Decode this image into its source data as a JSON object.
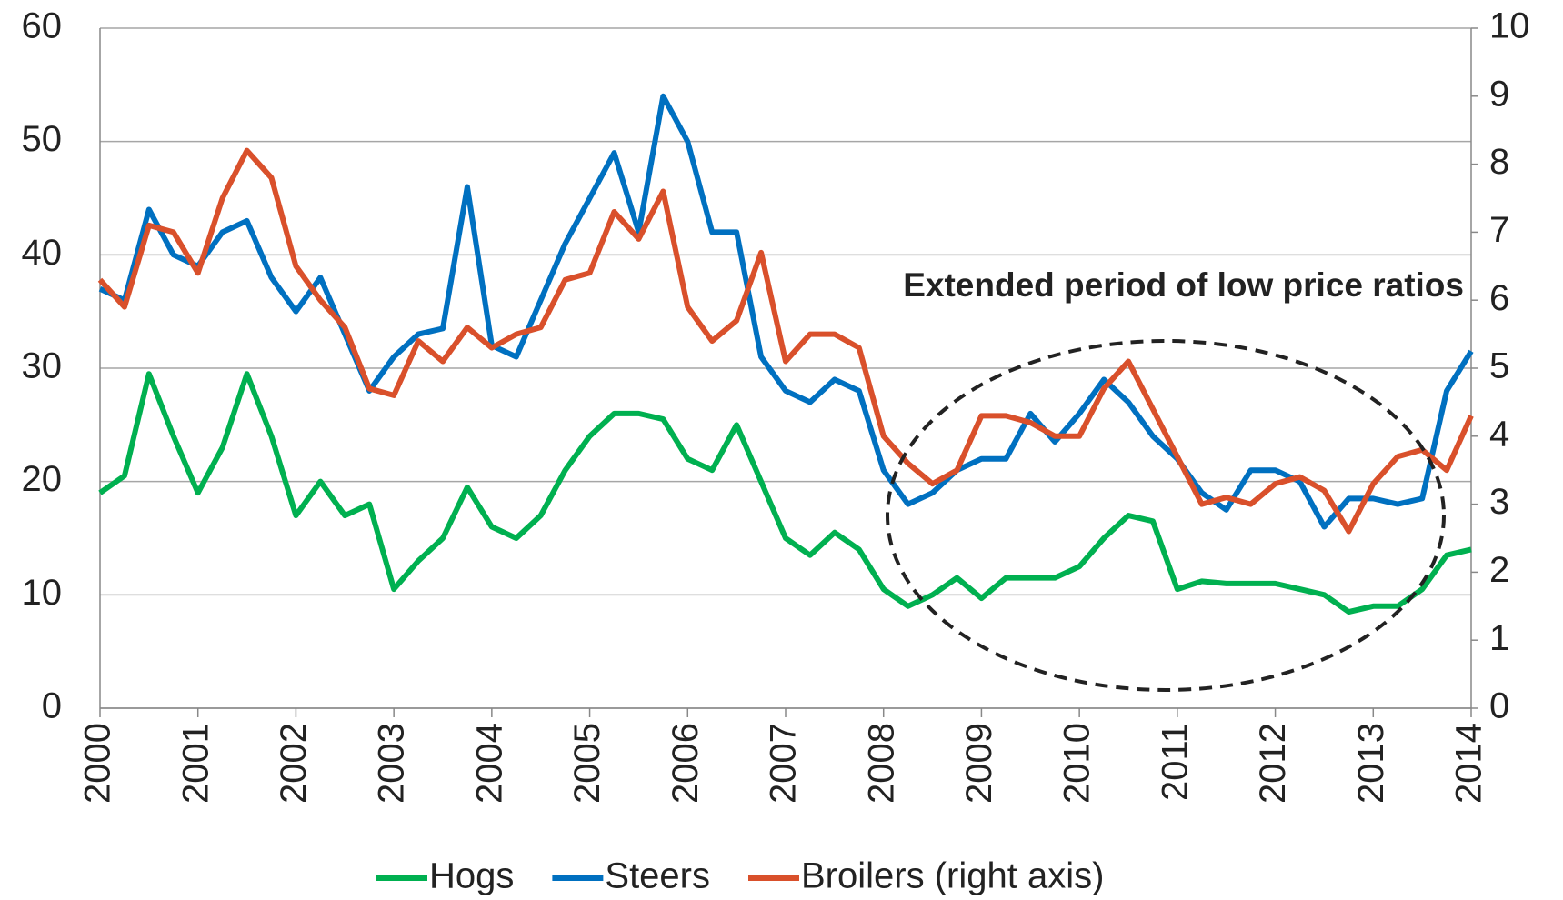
{
  "chart_data": {
    "type": "line",
    "annotation": "Extended period of low price ratios",
    "x": [
      2000,
      2000.25,
      2000.5,
      2000.75,
      2001,
      2001.25,
      2001.5,
      2001.75,
      2002,
      2002.25,
      2002.5,
      2002.75,
      2003,
      2003.25,
      2003.5,
      2003.75,
      2004,
      2004.25,
      2004.5,
      2004.75,
      2005,
      2005.25,
      2005.5,
      2005.75,
      2006,
      2006.25,
      2006.5,
      2006.75,
      2007,
      2007.25,
      2007.5,
      2007.75,
      2008,
      2008.25,
      2008.5,
      2008.75,
      2009,
      2009.25,
      2009.5,
      2009.75,
      2010,
      2010.25,
      2010.5,
      2010.75,
      2011,
      2011.25,
      2011.5,
      2011.75,
      2012,
      2012.25,
      2012.5,
      2012.75,
      2013,
      2013.25,
      2013.5,
      2013.75,
      2014
    ],
    "xlim": [
      2000,
      2014
    ],
    "xticks": [
      2000,
      2001,
      2002,
      2003,
      2004,
      2005,
      2006,
      2007,
      2008,
      2009,
      2010,
      2011,
      2012,
      2013,
      2014
    ],
    "ylim": [
      0,
      60
    ],
    "yticks": [
      0,
      10,
      20,
      30,
      40,
      50,
      60
    ],
    "y2lim": [
      0,
      10
    ],
    "y2ticks": [
      0,
      1,
      2,
      3,
      4,
      5,
      6,
      7,
      8,
      9,
      10
    ],
    "grid": true,
    "legend": "bottom",
    "series": [
      {
        "name": "Hogs",
        "color": "#00b050",
        "values": [
          19,
          20.5,
          29.5,
          24,
          19,
          23,
          29.5,
          24,
          17,
          20,
          17,
          18,
          10.5,
          13,
          15,
          19.5,
          16,
          15,
          17,
          21,
          24,
          26,
          26,
          25.5,
          22,
          21,
          25,
          20,
          15,
          13.5,
          15.5,
          14,
          10.5,
          9,
          10,
          11.5,
          9.7,
          11.5,
          11.5,
          11.5,
          12.5,
          15,
          17,
          16.5,
          10.5,
          11.2,
          11,
          11,
          11,
          10.5,
          10,
          8.5,
          9,
          9,
          10.5,
          13.5,
          14
        ]
      },
      {
        "name": "Steers",
        "color": "#0070c0",
        "values": [
          37,
          36,
          44,
          40,
          39,
          42,
          43,
          38,
          35,
          38,
          33,
          28,
          31,
          33,
          33.5,
          46,
          32,
          31,
          36,
          41,
          45,
          49,
          42,
          54,
          50,
          42,
          42,
          31,
          28,
          27,
          29,
          28,
          21,
          18,
          19,
          21,
          22,
          22,
          26,
          23.5,
          26,
          29,
          27,
          24,
          22,
          19,
          17.5,
          21,
          21,
          20,
          16,
          18.5,
          18.5,
          18,
          18.5,
          28,
          31.5
        ]
      },
      {
        "name": "Broilers (right axis)",
        "color": "#d9502b",
        "axis": "y2",
        "values": [
          6.3,
          5.9,
          7.1,
          7.0,
          6.4,
          7.5,
          8.2,
          7.8,
          6.5,
          6.0,
          5.6,
          4.7,
          4.6,
          5.4,
          5.1,
          5.6,
          5.3,
          5.5,
          5.6,
          6.3,
          6.4,
          7.3,
          6.9,
          7.6,
          5.9,
          5.4,
          5.7,
          6.7,
          5.1,
          5.5,
          5.5,
          5.3,
          4.0,
          3.6,
          3.3,
          3.5,
          4.3,
          4.3,
          4.2,
          4.0,
          4.0,
          4.7,
          5.1,
          4.4,
          3.7,
          3.0,
          3.1,
          3.0,
          3.3,
          3.4,
          3.2,
          2.6,
          3.3,
          3.7,
          3.8,
          3.5,
          4.3
        ]
      }
    ]
  }
}
